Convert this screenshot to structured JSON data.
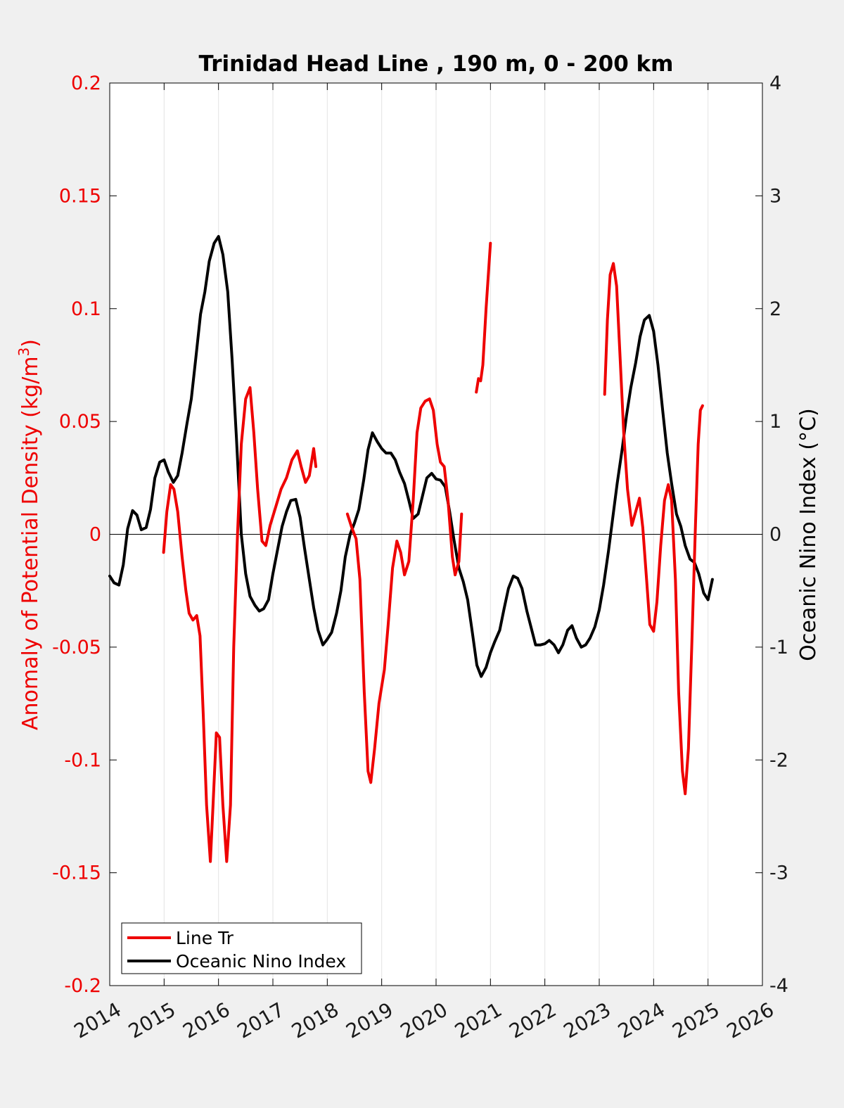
{
  "chart_data": {
    "type": "line",
    "title": "Trinidad Head Line , 190 m, 0 - 200 km",
    "xlim": [
      2014,
      2026
    ],
    "xticks": [
      "2014",
      "2015",
      "2016",
      "2017",
      "2018",
      "2019",
      "2020",
      "2021",
      "2022",
      "2023",
      "2024",
      "2025",
      "2026"
    ],
    "grid": "vertical",
    "legend_position": "bottom-left",
    "left_axis": {
      "label": "Anomaly of Potential Density (kg/m",
      "label_sup": "3",
      "label_tail": ")",
      "ylim": [
        -0.2,
        0.2
      ],
      "ticks": [
        "0.2",
        "0.15",
        "0.1",
        "0.05",
        "0",
        "-0.05",
        "-0.1",
        "-0.15",
        "-0.2"
      ],
      "color": "#ee0000"
    },
    "right_axis": {
      "label": "Oceanic Nino Index (°C)",
      "ylim": [
        -4,
        4
      ],
      "ticks": [
        "4",
        "3",
        "2",
        "1",
        "0",
        "-1",
        "-2",
        "-3",
        "-4"
      ],
      "color": "#000000"
    },
    "series": [
      {
        "name": "Line Tr",
        "axis": "left",
        "color": "#ee0000",
        "segments": [
          [
            [
              2014.99,
              -0.008
            ],
            [
              2015.05,
              0.01
            ],
            [
              2015.12,
              0.022
            ],
            [
              2015.18,
              0.02
            ],
            [
              2015.25,
              0.01
            ],
            [
              2015.33,
              -0.01
            ],
            [
              2015.4,
              -0.025
            ],
            [
              2015.46,
              -0.035
            ],
            [
              2015.53,
              -0.038
            ],
            [
              2015.6,
              -0.036
            ],
            [
              2015.66,
              -0.045
            ],
            [
              2015.72,
              -0.08
            ],
            [
              2015.78,
              -0.12
            ],
            [
              2015.85,
              -0.145
            ],
            [
              2015.9,
              -0.12
            ],
            [
              2015.96,
              -0.088
            ],
            [
              2016.02,
              -0.09
            ],
            [
              2016.08,
              -0.12
            ],
            [
              2016.15,
              -0.145
            ],
            [
              2016.22,
              -0.12
            ],
            [
              2016.28,
              -0.05
            ],
            [
              2016.35,
              0.0
            ],
            [
              2016.42,
              0.04
            ],
            [
              2016.5,
              0.06
            ],
            [
              2016.58,
              0.065
            ],
            [
              2016.65,
              0.045
            ],
            [
              2016.72,
              0.02
            ],
            [
              2016.8,
              -0.003
            ],
            [
              2016.87,
              -0.005
            ],
            [
              2016.95,
              0.004
            ],
            [
              2017.05,
              0.012
            ],
            [
              2017.15,
              0.02
            ],
            [
              2017.25,
              0.025
            ],
            [
              2017.35,
              0.033
            ],
            [
              2017.45,
              0.037
            ],
            [
              2017.52,
              0.03
            ],
            [
              2017.6,
              0.023
            ],
            [
              2017.67,
              0.026
            ],
            [
              2017.75,
              0.038
            ],
            [
              2017.79,
              0.03
            ]
          ],
          [
            [
              2018.37,
              0.009
            ],
            [
              2018.45,
              0.003
            ],
            [
              2018.53,
              -0.002
            ],
            [
              2018.6,
              -0.02
            ],
            [
              2018.68,
              -0.07
            ],
            [
              2018.75,
              -0.105
            ],
            [
              2018.8,
              -0.11
            ],
            [
              2018.87,
              -0.095
            ],
            [
              2018.95,
              -0.075
            ],
            [
              2019.05,
              -0.06
            ],
            [
              2019.12,
              -0.04
            ],
            [
              2019.2,
              -0.015
            ],
            [
              2019.28,
              -0.003
            ],
            [
              2019.35,
              -0.008
            ],
            [
              2019.42,
              -0.018
            ],
            [
              2019.5,
              -0.012
            ],
            [
              2019.58,
              0.015
            ],
            [
              2019.65,
              0.045
            ],
            [
              2019.72,
              0.056
            ],
            [
              2019.8,
              0.059
            ],
            [
              2019.88,
              0.06
            ],
            [
              2019.95,
              0.055
            ],
            [
              2020.02,
              0.04
            ],
            [
              2020.08,
              0.032
            ],
            [
              2020.15,
              0.03
            ],
            [
              2020.22,
              0.015
            ],
            [
              2020.3,
              -0.01
            ],
            [
              2020.35,
              -0.018
            ],
            [
              2020.42,
              -0.012
            ],
            [
              2020.47,
              0.009
            ]
          ],
          [
            [
              2020.74,
              0.063
            ],
            [
              2020.78,
              0.069
            ],
            [
              2020.82,
              0.068
            ],
            [
              2020.86,
              0.075
            ],
            [
              2020.92,
              0.1
            ],
            [
              2021.0,
              0.129
            ]
          ],
          [
            [
              2023.1,
              0.062
            ],
            [
              2023.15,
              0.095
            ],
            [
              2023.2,
              0.115
            ],
            [
              2023.26,
              0.12
            ],
            [
              2023.32,
              0.11
            ],
            [
              2023.38,
              0.08
            ],
            [
              2023.45,
              0.045
            ],
            [
              2023.52,
              0.02
            ],
            [
              2023.6,
              0.004
            ],
            [
              2023.67,
              0.01
            ],
            [
              2023.74,
              0.016
            ],
            [
              2023.8,
              0.003
            ],
            [
              2023.87,
              -0.02
            ],
            [
              2023.93,
              -0.04
            ],
            [
              2024.0,
              -0.043
            ],
            [
              2024.06,
              -0.03
            ],
            [
              2024.13,
              -0.005
            ],
            [
              2024.2,
              0.015
            ],
            [
              2024.27,
              0.022
            ],
            [
              2024.33,
              0.015
            ],
            [
              2024.4,
              -0.02
            ],
            [
              2024.46,
              -0.07
            ],
            [
              2024.53,
              -0.105
            ],
            [
              2024.58,
              -0.115
            ],
            [
              2024.64,
              -0.095
            ],
            [
              2024.7,
              -0.05
            ],
            [
              2024.77,
              0.005
            ],
            [
              2024.82,
              0.04
            ],
            [
              2024.86,
              0.055
            ],
            [
              2024.9,
              0.057
            ]
          ]
        ]
      },
      {
        "name": "Oceanic Nino Index",
        "axis": "right",
        "color": "#000000",
        "segments": [
          [
            [
              2014.0,
              -0.37
            ],
            [
              2014.08,
              -0.43
            ],
            [
              2014.17,
              -0.45
            ],
            [
              2014.25,
              -0.27
            ],
            [
              2014.33,
              0.05
            ],
            [
              2014.42,
              0.21
            ],
            [
              2014.5,
              0.17
            ],
            [
              2014.58,
              0.04
            ],
            [
              2014.67,
              0.06
            ],
            [
              2014.75,
              0.22
            ],
            [
              2014.83,
              0.5
            ],
            [
              2014.92,
              0.64
            ],
            [
              2015.0,
              0.66
            ],
            [
              2015.08,
              0.55
            ],
            [
              2015.17,
              0.46
            ],
            [
              2015.25,
              0.52
            ],
            [
              2015.33,
              0.72
            ],
            [
              2015.42,
              0.98
            ],
            [
              2015.5,
              1.2
            ],
            [
              2015.58,
              1.55
            ],
            [
              2015.67,
              1.95
            ],
            [
              2015.75,
              2.15
            ],
            [
              2015.83,
              2.42
            ],
            [
              2015.92,
              2.58
            ],
            [
              2016.0,
              2.64
            ],
            [
              2016.08,
              2.48
            ],
            [
              2016.17,
              2.15
            ],
            [
              2016.25,
              1.55
            ],
            [
              2016.33,
              0.85
            ],
            [
              2016.42,
              0.0
            ],
            [
              2016.5,
              -0.35
            ],
            [
              2016.58,
              -0.55
            ],
            [
              2016.67,
              -0.63
            ],
            [
              2016.75,
              -0.68
            ],
            [
              2016.83,
              -0.66
            ],
            [
              2016.92,
              -0.58
            ],
            [
              2017.0,
              -0.35
            ],
            [
              2017.08,
              -0.15
            ],
            [
              2017.17,
              0.07
            ],
            [
              2017.25,
              0.2
            ],
            [
              2017.33,
              0.3
            ],
            [
              2017.42,
              0.31
            ],
            [
              2017.5,
              0.15
            ],
            [
              2017.58,
              -0.12
            ],
            [
              2017.67,
              -0.4
            ],
            [
              2017.75,
              -0.65
            ],
            [
              2017.83,
              -0.85
            ],
            [
              2017.92,
              -0.98
            ],
            [
              2018.0,
              -0.93
            ],
            [
              2018.08,
              -0.87
            ],
            [
              2018.17,
              -0.7
            ],
            [
              2018.25,
              -0.5
            ],
            [
              2018.33,
              -0.2
            ],
            [
              2018.42,
              0.0
            ],
            [
              2018.5,
              0.1
            ],
            [
              2018.58,
              0.22
            ],
            [
              2018.67,
              0.48
            ],
            [
              2018.75,
              0.75
            ],
            [
              2018.83,
              0.9
            ],
            [
              2018.92,
              0.82
            ],
            [
              2019.0,
              0.76
            ],
            [
              2019.08,
              0.72
            ],
            [
              2019.17,
              0.72
            ],
            [
              2019.25,
              0.66
            ],
            [
              2019.33,
              0.55
            ],
            [
              2019.42,
              0.45
            ],
            [
              2019.5,
              0.3
            ],
            [
              2019.58,
              0.14
            ],
            [
              2019.67,
              0.18
            ],
            [
              2019.75,
              0.34
            ],
            [
              2019.83,
              0.5
            ],
            [
              2019.92,
              0.54
            ],
            [
              2020.0,
              0.49
            ],
            [
              2020.08,
              0.48
            ],
            [
              2020.17,
              0.42
            ],
            [
              2020.25,
              0.2
            ],
            [
              2020.33,
              -0.05
            ],
            [
              2020.42,
              -0.3
            ],
            [
              2020.5,
              -0.42
            ],
            [
              2020.58,
              -0.58
            ],
            [
              2020.67,
              -0.88
            ],
            [
              2020.75,
              -1.16
            ],
            [
              2020.83,
              -1.26
            ],
            [
              2020.92,
              -1.18
            ],
            [
              2021.0,
              -1.05
            ],
            [
              2021.08,
              -0.95
            ],
            [
              2021.17,
              -0.85
            ],
            [
              2021.25,
              -0.66
            ],
            [
              2021.33,
              -0.48
            ],
            [
              2021.42,
              -0.37
            ],
            [
              2021.5,
              -0.39
            ],
            [
              2021.58,
              -0.48
            ],
            [
              2021.67,
              -0.68
            ],
            [
              2021.75,
              -0.83
            ],
            [
              2021.83,
              -0.98
            ],
            [
              2021.92,
              -0.98
            ],
            [
              2022.0,
              -0.97
            ],
            [
              2022.08,
              -0.94
            ],
            [
              2022.17,
              -0.98
            ],
            [
              2022.25,
              -1.05
            ],
            [
              2022.33,
              -0.98
            ],
            [
              2022.42,
              -0.85
            ],
            [
              2022.5,
              -0.81
            ],
            [
              2022.58,
              -0.92
            ],
            [
              2022.67,
              -1.0
            ],
            [
              2022.75,
              -0.98
            ],
            [
              2022.83,
              -0.92
            ],
            [
              2022.92,
              -0.82
            ],
            [
              2023.0,
              -0.67
            ],
            [
              2023.08,
              -0.45
            ],
            [
              2023.17,
              -0.15
            ],
            [
              2023.25,
              0.15
            ],
            [
              2023.33,
              0.45
            ],
            [
              2023.42,
              0.75
            ],
            [
              2023.5,
              1.05
            ],
            [
              2023.58,
              1.3
            ],
            [
              2023.67,
              1.52
            ],
            [
              2023.75,
              1.75
            ],
            [
              2023.83,
              1.9
            ],
            [
              2023.92,
              1.94
            ],
            [
              2024.0,
              1.8
            ],
            [
              2024.08,
              1.5
            ],
            [
              2024.17,
              1.08
            ],
            [
              2024.25,
              0.72
            ],
            [
              2024.33,
              0.45
            ],
            [
              2024.42,
              0.18
            ],
            [
              2024.5,
              0.07
            ],
            [
              2024.58,
              -0.1
            ],
            [
              2024.67,
              -0.22
            ],
            [
              2024.75,
              -0.25
            ],
            [
              2024.83,
              -0.35
            ],
            [
              2024.92,
              -0.52
            ],
            [
              2025.0,
              -0.58
            ],
            [
              2025.08,
              -0.4
            ]
          ]
        ]
      }
    ]
  }
}
